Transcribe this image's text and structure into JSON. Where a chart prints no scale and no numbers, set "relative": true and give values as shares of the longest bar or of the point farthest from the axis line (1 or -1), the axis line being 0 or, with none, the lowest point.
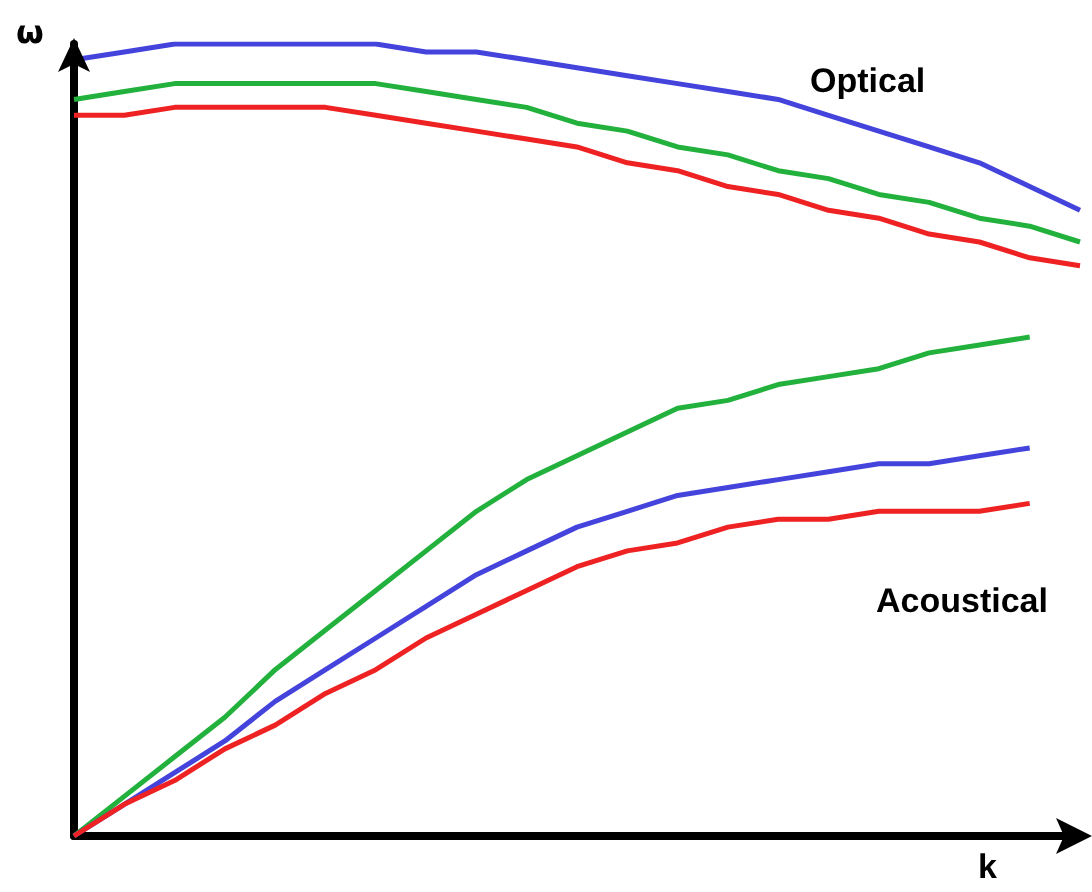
{
  "chart_data": {
    "type": "line",
    "relative": true,
    "xlabel": "k",
    "ylabel": "ω",
    "annotations": [
      "Optical",
      "Acoustical"
    ],
    "categories": [
      null,
      null,
      null,
      null,
      null,
      null,
      null,
      null,
      null,
      null,
      null,
      null,
      null,
      null,
      null,
      null,
      null,
      null,
      null,
      null,
      null
    ],
    "series": [
      {
        "color": "#4444dd",
        "values": [
          0.98,
          0.99,
          1.0,
          1.0,
          1.0,
          1.0,
          1.0,
          0.99,
          0.99,
          0.98,
          0.97,
          0.96,
          0.95,
          0.94,
          0.93,
          0.91,
          0.89,
          0.87,
          0.85,
          0.82,
          0.79
        ]
      },
      {
        "color": "#22b13c",
        "values": [
          0.93,
          0.94,
          0.95,
          0.95,
          0.95,
          0.95,
          0.95,
          0.94,
          0.93,
          0.92,
          0.9,
          0.89,
          0.87,
          0.86,
          0.84,
          0.83,
          0.81,
          0.8,
          0.78,
          0.77,
          0.75
        ]
      },
      {
        "color": "#ee2222",
        "values": [
          0.91,
          0.91,
          0.92,
          0.92,
          0.92,
          0.92,
          0.91,
          0.9,
          0.89,
          0.88,
          0.87,
          0.85,
          0.84,
          0.82,
          0.81,
          0.79,
          0.78,
          0.76,
          0.75,
          0.73,
          0.72
        ]
      },
      {
        "color": "#22b13c",
        "values": [
          0,
          0.05,
          0.1,
          0.15,
          0.21,
          0.26,
          0.31,
          0.36,
          0.41,
          0.45,
          0.48,
          0.51,
          0.54,
          0.55,
          0.57,
          0.58,
          0.59,
          0.61,
          0.62,
          0.63,
          null
        ]
      },
      {
        "color": "#4444dd",
        "values": [
          0,
          0.04,
          0.08,
          0.12,
          0.17,
          0.21,
          0.25,
          0.29,
          0.33,
          0.36,
          0.39,
          0.41,
          0.43,
          0.44,
          0.45,
          0.46,
          0.47,
          0.47,
          0.48,
          0.49,
          null
        ]
      },
      {
        "color": "#ee2222",
        "values": [
          0,
          0.04,
          0.07,
          0.11,
          0.14,
          0.18,
          0.21,
          0.25,
          0.28,
          0.31,
          0.34,
          0.36,
          0.37,
          0.39,
          0.4,
          0.4,
          0.41,
          0.41,
          0.41,
          0.42,
          null
        ]
      }
    ],
    "grid": false,
    "marker": "none"
  }
}
